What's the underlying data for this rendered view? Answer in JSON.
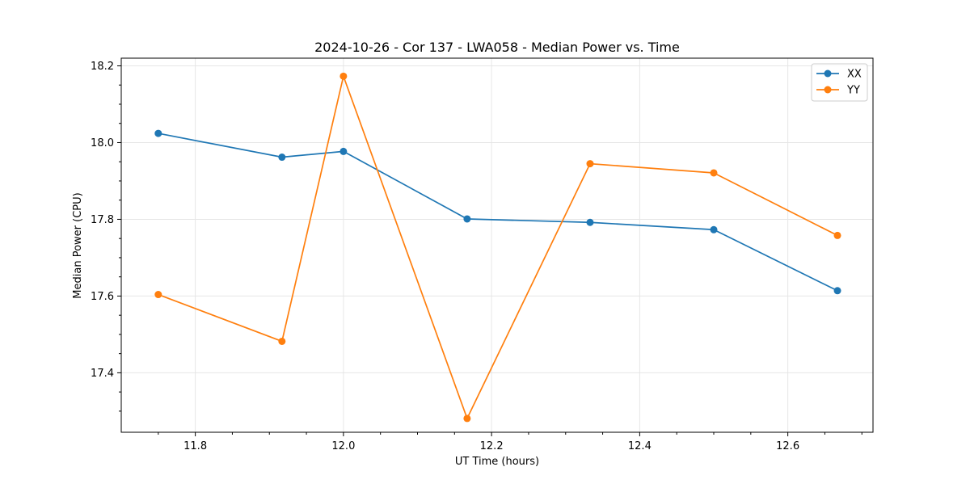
{
  "chart_data": {
    "type": "line",
    "title": "2024-10-26 - Cor 137 - LWA058 - Median Power vs. Time",
    "xlabel": "UT Time (hours)",
    "ylabel": "Median Power (CPU)",
    "xlim": [
      11.7,
      12.715
    ],
    "ylim": [
      17.245,
      18.22
    ],
    "xticks": [
      11.8,
      12.0,
      12.2,
      12.4,
      12.6
    ],
    "xtick_labels": [
      "11.8",
      "12.0",
      "12.2",
      "12.4",
      "12.6"
    ],
    "yticks": [
      17.4,
      17.6,
      17.8,
      18.0,
      18.2
    ],
    "ytick_labels": [
      "17.4",
      "17.6",
      "17.8",
      "18.0",
      "18.2"
    ],
    "grid": true,
    "legend_position": "upper right",
    "x": [
      11.75,
      11.917,
      12.0,
      12.167,
      12.333,
      12.5,
      12.667
    ],
    "series": [
      {
        "name": "XX",
        "color": "#1f77b4",
        "marker": "circle",
        "values": [
          18.024,
          17.962,
          17.977,
          17.801,
          17.792,
          17.773,
          17.614
        ]
      },
      {
        "name": "YY",
        "color": "#ff7f0e",
        "marker": "circle",
        "values": [
          17.604,
          17.482,
          18.173,
          17.281,
          17.945,
          17.921,
          17.758
        ]
      }
    ]
  }
}
